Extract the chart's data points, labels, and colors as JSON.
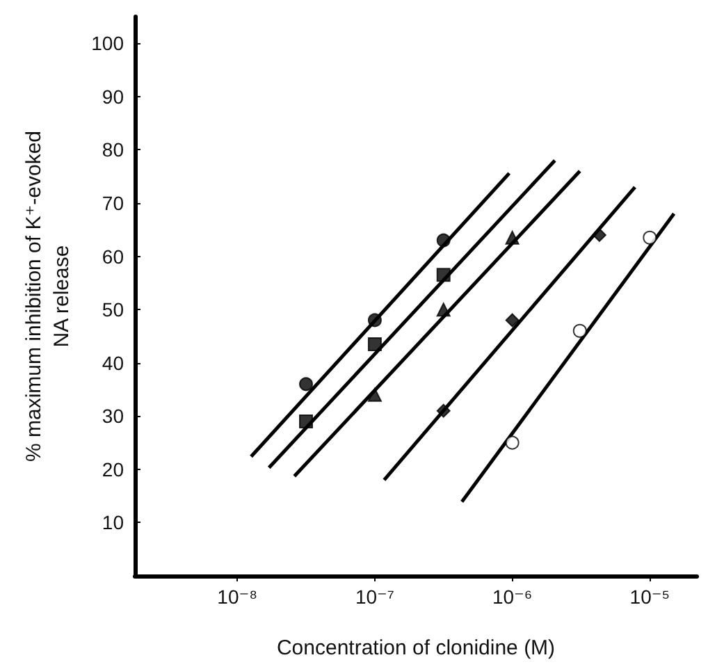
{
  "chart_data": {
    "type": "scatter",
    "xlabel": "Concentration of clonidine (M)",
    "ylabel": "% maximum inhibition of K⁺-evoked\nNA release",
    "log": "x",
    "grid": false,
    "xlim": [
      1.8e-09,
      2.2e-05
    ],
    "xticks": [
      {
        "value": 1e-08,
        "label": "10⁻⁸"
      },
      {
        "value": 1e-07,
        "label": "10⁻⁷"
      },
      {
        "value": 1e-06,
        "label": "10⁻⁶"
      },
      {
        "value": 1e-05,
        "label": "10⁻⁵"
      }
    ],
    "ylim": [
      0,
      105
    ],
    "yticks": [
      10,
      20,
      30,
      40,
      50,
      60,
      70,
      80,
      90,
      100
    ],
    "series": [
      {
        "marker": "circle",
        "color": "#000000",
        "x": [
          3.16e-08,
          1e-07,
          3.16e-07
        ],
        "values": [
          36,
          48,
          63
        ]
      },
      {
        "marker": "square",
        "color": "#000000",
        "x": [
          3.16e-08,
          1e-07,
          3.16e-07
        ],
        "values": [
          29,
          43.5,
          56.5
        ]
      },
      {
        "marker": "triangle",
        "color": "#000000",
        "x": [
          1e-07,
          3.16e-07,
          1e-06
        ],
        "values": [
          34,
          50,
          63.5
        ]
      },
      {
        "marker": "diamond",
        "color": "#000000",
        "x": [
          3.16e-07,
          1e-06,
          4.3e-06
        ],
        "values": [
          31,
          48,
          64
        ]
      },
      {
        "marker": "circle",
        "color": "#ffffff",
        "x": [
          1e-06,
          3.1e-06,
          1e-05
        ],
        "values": [
          25,
          46,
          63.5
        ]
      },
      {
        "type": "line",
        "marker": "none",
        "line_style": "solid",
        "color": "#000000",
        "x": [
          1.26e-08,
          9.5e-07
        ],
        "values": [
          22.4,
          75.6
        ]
      },
      {
        "type": "line",
        "marker": "none",
        "line_style": "solid",
        "color": "#000000",
        "x": [
          1.7e-08,
          2.04e-06
        ],
        "values": [
          20.3,
          78
        ]
      },
      {
        "type": "line",
        "marker": "none",
        "line_style": "solid",
        "color": "#000000",
        "x": [
          2.6e-08,
          3.1e-06
        ],
        "values": [
          18.7,
          76
        ]
      },
      {
        "type": "line",
        "marker": "none",
        "line_style": "solid",
        "color": "#000000",
        "x": [
          1.17e-07,
          7.8e-06
        ],
        "values": [
          18,
          73
        ]
      },
      {
        "type": "line",
        "marker": "none",
        "line_style": "solid",
        "color": "#000000",
        "x": [
          4.3e-07,
          1.5e-05
        ],
        "values": [
          13.9,
          68
        ]
      }
    ]
  }
}
